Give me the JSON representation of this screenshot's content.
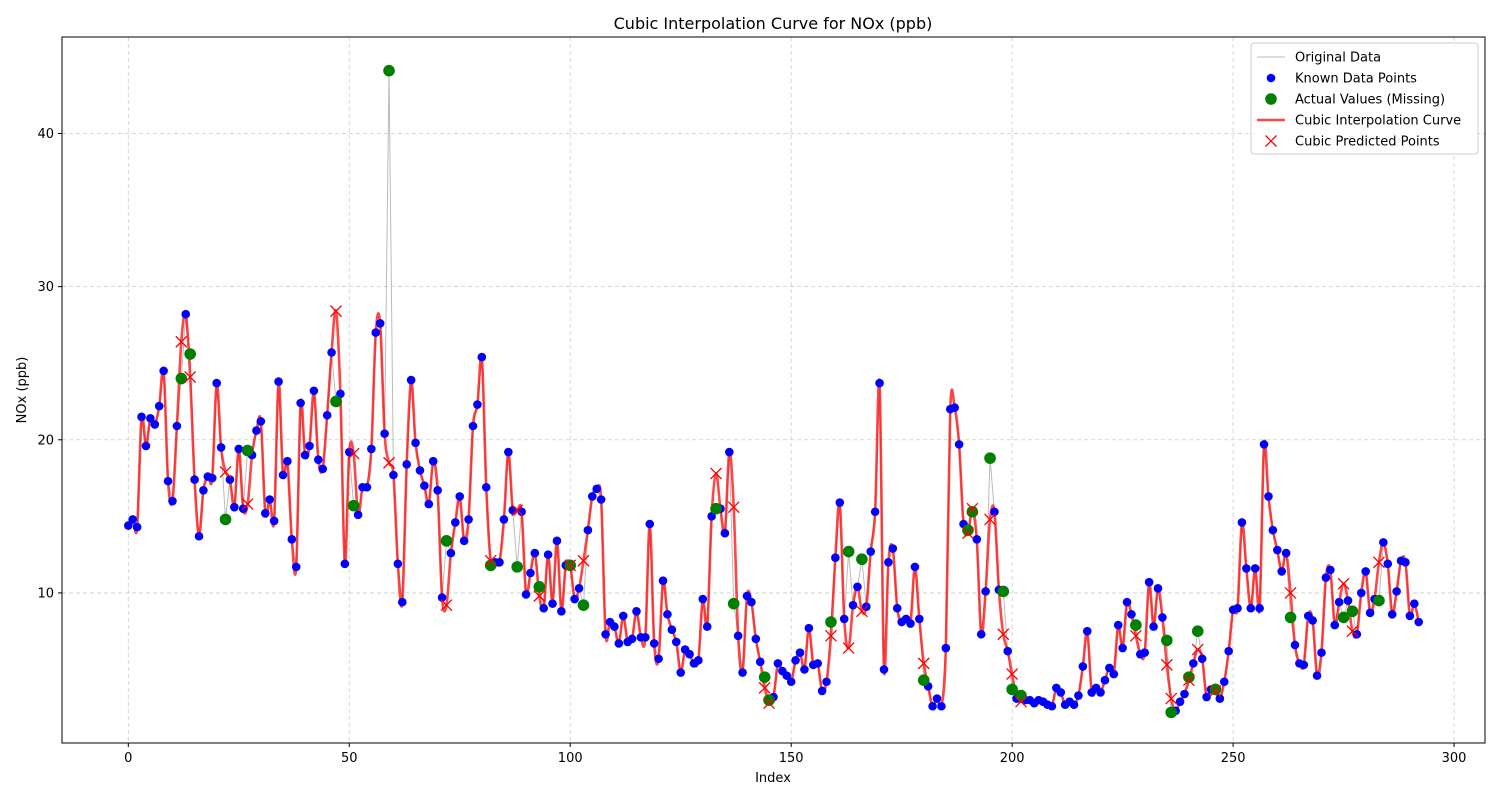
{
  "chart_data": {
    "type": "line",
    "title": "Cubic Interpolation Curve for NOx (ppb)",
    "xlabel": "Index",
    "ylabel": "NOx (ppb)",
    "xlim": [
      -15,
      307
    ],
    "ylim": [
      0.2,
      46.3
    ],
    "xticks": [
      0,
      50,
      100,
      150,
      200,
      250,
      300
    ],
    "yticks": [
      10,
      20,
      30,
      40
    ],
    "grid": true,
    "legend_position": "top-right",
    "legend": [
      {
        "label": "Original Data",
        "kind": "line",
        "color": "#bbbbbb"
      },
      {
        "label": "Known Data Points",
        "kind": "dot",
        "color": "#0000ff"
      },
      {
        "label": "Actual Values (Missing)",
        "kind": "bigdot",
        "color": "#008000"
      },
      {
        "label": "Cubic Interpolation Curve",
        "kind": "thickline",
        "color": "#ff0000"
      },
      {
        "label": "Cubic Predicted Points",
        "kind": "cross",
        "color": "#ff0000"
      }
    ],
    "known_points": [
      [
        0,
        14.4
      ],
      [
        1,
        14.8
      ],
      [
        2,
        14.3
      ],
      [
        3,
        21.5
      ],
      [
        4,
        19.6
      ],
      [
        5,
        21.4
      ],
      [
        6,
        21.0
      ],
      [
        7,
        22.2
      ],
      [
        8,
        24.5
      ],
      [
        9,
        17.3
      ],
      [
        10,
        16.0
      ],
      [
        11,
        20.9
      ],
      [
        13,
        28.2
      ],
      [
        15,
        17.4
      ],
      [
        16,
        13.7
      ],
      [
        17,
        16.7
      ],
      [
        18,
        17.6
      ],
      [
        19,
        17.5
      ],
      [
        20,
        23.7
      ],
      [
        21,
        19.5
      ],
      [
        23,
        17.4
      ],
      [
        24,
        15.6
      ],
      [
        25,
        19.4
      ],
      [
        26,
        15.5
      ],
      [
        28,
        19.0
      ],
      [
        29,
        20.6
      ],
      [
        30,
        21.2
      ],
      [
        31,
        15.2
      ],
      [
        32,
        16.1
      ],
      [
        33,
        14.7
      ],
      [
        34,
        23.8
      ],
      [
        35,
        17.7
      ],
      [
        36,
        18.6
      ],
      [
        37,
        13.5
      ],
      [
        38,
        11.7
      ],
      [
        39,
        22.4
      ],
      [
        40,
        19.0
      ],
      [
        41,
        19.6
      ],
      [
        42,
        23.2
      ],
      [
        43,
        18.7
      ],
      [
        44,
        18.1
      ],
      [
        45,
        21.6
      ],
      [
        46,
        25.7
      ],
      [
        48,
        23.0
      ],
      [
        49,
        11.9
      ],
      [
        50,
        19.2
      ],
      [
        52,
        15.1
      ],
      [
        53,
        16.9
      ],
      [
        54,
        16.9
      ],
      [
        55,
        19.4
      ],
      [
        56,
        27.0
      ],
      [
        57,
        27.6
      ],
      [
        58,
        20.4
      ],
      [
        60,
        17.7
      ],
      [
        61,
        11.9
      ],
      [
        62,
        9.4
      ],
      [
        63,
        18.4
      ],
      [
        64,
        23.9
      ],
      [
        65,
        19.8
      ],
      [
        66,
        18.0
      ],
      [
        67,
        17.0
      ],
      [
        68,
        15.8
      ],
      [
        69,
        18.6
      ],
      [
        70,
        16.7
      ],
      [
        71,
        9.7
      ],
      [
        73,
        12.6
      ],
      [
        74,
        14.6
      ],
      [
        75,
        16.3
      ],
      [
        76,
        13.4
      ],
      [
        77,
        14.8
      ],
      [
        78,
        20.9
      ],
      [
        79,
        22.3
      ],
      [
        80,
        25.4
      ],
      [
        81,
        16.9
      ],
      [
        83,
        12.0
      ],
      [
        84,
        12.0
      ],
      [
        85,
        14.8
      ],
      [
        86,
        19.2
      ],
      [
        87,
        15.4
      ],
      [
        89,
        15.3
      ],
      [
        90,
        9.9
      ],
      [
        91,
        11.3
      ],
      [
        92,
        12.6
      ],
      [
        94,
        9.0
      ],
      [
        95,
        12.5
      ],
      [
        96,
        9.3
      ],
      [
        97,
        13.4
      ],
      [
        98,
        8.8
      ],
      [
        99,
        11.8
      ],
      [
        101,
        9.6
      ],
      [
        102,
        10.3
      ],
      [
        104,
        14.1
      ],
      [
        105,
        16.3
      ],
      [
        106,
        16.8
      ],
      [
        107,
        16.1
      ],
      [
        108,
        7.3
      ],
      [
        109,
        8.1
      ],
      [
        110,
        7.8
      ],
      [
        111,
        6.7
      ],
      [
        112,
        8.5
      ],
      [
        113,
        6.8
      ],
      [
        114,
        7.0
      ],
      [
        115,
        8.8
      ],
      [
        116,
        7.1
      ],
      [
        117,
        7.1
      ],
      [
        118,
        14.5
      ],
      [
        119,
        6.7
      ],
      [
        120,
        5.7
      ],
      [
        121,
        10.8
      ],
      [
        122,
        8.6
      ],
      [
        123,
        7.6
      ],
      [
        124,
        6.8
      ],
      [
        125,
        4.8
      ],
      [
        126,
        6.3
      ],
      [
        127,
        6.0
      ],
      [
        128,
        5.4
      ],
      [
        129,
        5.6
      ],
      [
        130,
        9.6
      ],
      [
        131,
        7.8
      ],
      [
        132,
        15.0
      ],
      [
        134,
        15.5
      ],
      [
        135,
        13.9
      ],
      [
        136,
        19.2
      ],
      [
        138,
        7.2
      ],
      [
        139,
        4.8
      ],
      [
        140,
        9.8
      ],
      [
        141,
        9.4
      ],
      [
        142,
        7.0
      ],
      [
        143,
        5.5
      ],
      [
        146,
        3.2
      ],
      [
        147,
        5.4
      ],
      [
        148,
        4.9
      ],
      [
        149,
        4.6
      ],
      [
        150,
        4.2
      ],
      [
        151,
        5.6
      ],
      [
        152,
        6.1
      ],
      [
        153,
        5.0
      ],
      [
        154,
        7.7
      ],
      [
        155,
        5.3
      ],
      [
        156,
        5.4
      ],
      [
        157,
        3.6
      ],
      [
        158,
        4.2
      ],
      [
        160,
        12.3
      ],
      [
        161,
        15.9
      ],
      [
        162,
        8.3
      ],
      [
        164,
        9.2
      ],
      [
        165,
        10.4
      ],
      [
        167,
        9.1
      ],
      [
        168,
        12.7
      ],
      [
        169,
        15.3
      ],
      [
        170,
        23.7
      ],
      [
        171,
        5.0
      ],
      [
        172,
        12.0
      ],
      [
        173,
        12.9
      ],
      [
        174,
        9.0
      ],
      [
        175,
        8.1
      ],
      [
        176,
        8.3
      ],
      [
        177,
        8.0
      ],
      [
        178,
        11.7
      ],
      [
        179,
        8.3
      ],
      [
        181,
        3.9
      ],
      [
        182,
        2.6
      ],
      [
        183,
        3.1
      ],
      [
        184,
        2.6
      ],
      [
        185,
        6.4
      ],
      [
        186,
        22.0
      ],
      [
        187,
        22.1
      ],
      [
        188,
        19.7
      ],
      [
        189,
        14.5
      ],
      [
        192,
        13.5
      ],
      [
        193,
        7.3
      ],
      [
        194,
        10.1
      ],
      [
        196,
        15.3
      ],
      [
        197,
        10.2
      ],
      [
        199,
        6.2
      ],
      [
        201,
        3.1
      ],
      [
        203,
        3.0
      ],
      [
        204,
        3.0
      ],
      [
        205,
        2.8
      ],
      [
        206,
        3.0
      ],
      [
        207,
        2.9
      ],
      [
        208,
        2.7
      ],
      [
        209,
        2.6
      ],
      [
        210,
        3.8
      ],
      [
        211,
        3.5
      ],
      [
        212,
        2.7
      ],
      [
        213,
        2.9
      ],
      [
        214,
        2.7
      ],
      [
        215,
        3.3
      ],
      [
        216,
        5.2
      ],
      [
        217,
        7.5
      ],
      [
        218,
        3.5
      ],
      [
        219,
        3.8
      ],
      [
        220,
        3.5
      ],
      [
        221,
        4.3
      ],
      [
        222,
        5.1
      ],
      [
        223,
        4.7
      ],
      [
        224,
        7.9
      ],
      [
        225,
        6.4
      ],
      [
        226,
        9.4
      ],
      [
        227,
        8.6
      ],
      [
        229,
        6.0
      ],
      [
        230,
        6.1
      ],
      [
        231,
        10.7
      ],
      [
        232,
        7.8
      ],
      [
        233,
        10.3
      ],
      [
        234,
        8.4
      ],
      [
        237,
        2.3
      ],
      [
        238,
        2.9
      ],
      [
        239,
        3.4
      ],
      [
        241,
        5.4
      ],
      [
        243,
        5.7
      ],
      [
        244,
        3.2
      ],
      [
        245,
        3.7
      ],
      [
        246,
        3.8
      ],
      [
        247,
        3.1
      ],
      [
        248,
        4.2
      ],
      [
        249,
        6.2
      ],
      [
        250,
        8.9
      ],
      [
        251,
        9.0
      ],
      [
        252,
        14.6
      ],
      [
        253,
        11.6
      ],
      [
        254,
        9.0
      ],
      [
        255,
        11.6
      ],
      [
        256,
        9.0
      ],
      [
        257,
        19.7
      ],
      [
        258,
        16.3
      ],
      [
        259,
        14.1
      ],
      [
        260,
        12.8
      ],
      [
        261,
        11.4
      ],
      [
        262,
        12.6
      ],
      [
        264,
        6.6
      ],
      [
        265,
        5.4
      ],
      [
        266,
        5.3
      ],
      [
        267,
        8.5
      ],
      [
        268,
        8.2
      ],
      [
        269,
        4.6
      ],
      [
        270,
        6.1
      ],
      [
        271,
        11.0
      ],
      [
        272,
        11.5
      ],
      [
        273,
        7.9
      ],
      [
        274,
        9.4
      ],
      [
        276,
        9.5
      ],
      [
        278,
        7.3
      ],
      [
        279,
        10.0
      ],
      [
        280,
        11.4
      ],
      [
        281,
        8.7
      ],
      [
        282,
        9.6
      ],
      [
        284,
        13.3
      ],
      [
        285,
        11.9
      ],
      [
        286,
        8.6
      ],
      [
        287,
        10.1
      ],
      [
        288,
        12.1
      ],
      [
        289,
        12.0
      ],
      [
        290,
        8.5
      ],
      [
        291,
        9.3
      ],
      [
        292,
        8.1
      ]
    ],
    "missing_points": [
      [
        12,
        24.0,
        26.4
      ],
      [
        14,
        25.6,
        24.1
      ],
      [
        22,
        14.8,
        17.9
      ],
      [
        27,
        19.3,
        15.8
      ],
      [
        47,
        22.5,
        28.4
      ],
      [
        51,
        15.7,
        19.1
      ],
      [
        59,
        44.1,
        18.5
      ],
      [
        72,
        13.4,
        9.2
      ],
      [
        82,
        11.8,
        12.1
      ],
      [
        88,
        11.7,
        15.4
      ],
      [
        93,
        10.4,
        9.8
      ],
      [
        100,
        11.8,
        11.8
      ],
      [
        103,
        9.2,
        12.1
      ],
      [
        133,
        15.5,
        17.8
      ],
      [
        137,
        9.3,
        15.6
      ],
      [
        144,
        4.5,
        3.8
      ],
      [
        145,
        3.0,
        2.8
      ],
      [
        159,
        8.1,
        7.2
      ],
      [
        163,
        12.7,
        6.4
      ],
      [
        166,
        12.2,
        8.8
      ],
      [
        180,
        4.3,
        5.4
      ],
      [
        190,
        14.1,
        13.9
      ],
      [
        191,
        15.3,
        15.5
      ],
      [
        195,
        18.8,
        14.8
      ],
      [
        198,
        10.1,
        7.3
      ],
      [
        200,
        3.7,
        4.7
      ],
      [
        202,
        3.3,
        2.9
      ],
      [
        228,
        7.9,
        7.2
      ],
      [
        235,
        6.9,
        5.3
      ],
      [
        236,
        2.2,
        3.1
      ],
      [
        240,
        4.5,
        4.3
      ],
      [
        242,
        7.5,
        6.3
      ],
      [
        246,
        3.7,
        3.6
      ],
      [
        263,
        8.4,
        10.0
      ],
      [
        275,
        8.4,
        10.6
      ],
      [
        277,
        8.8,
        7.5
      ],
      [
        283,
        9.5,
        12.0
      ]
    ]
  }
}
